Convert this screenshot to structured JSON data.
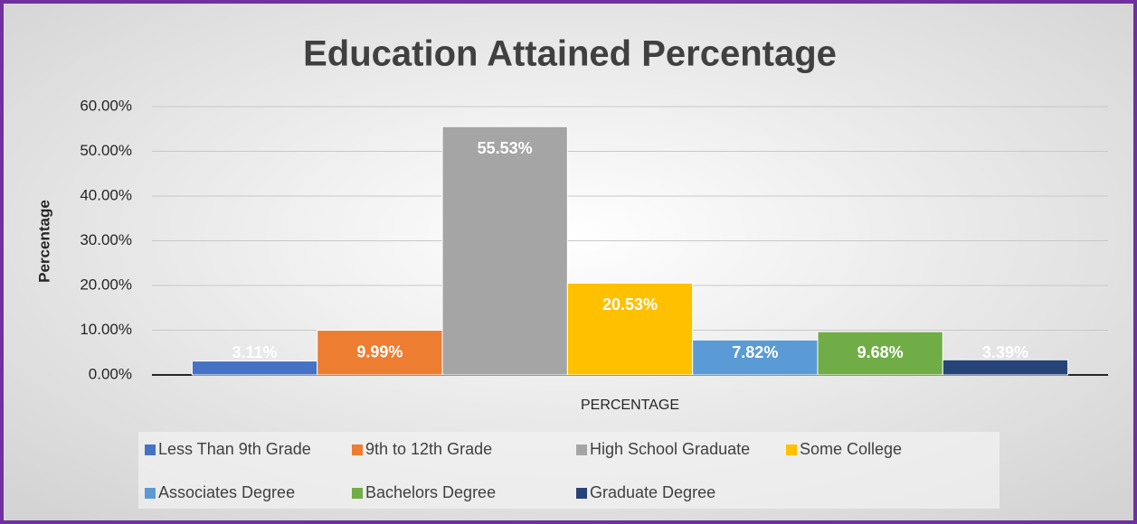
{
  "chart_data": {
    "type": "bar",
    "title": "Education Attained Percentage",
    "y_axis_label": "Percentage",
    "categories": [
      "PERCENTAGE"
    ],
    "series": [
      {
        "name": "Less Than 9th Grade",
        "color": "#4472c4",
        "values": [
          3.11
        ],
        "value_labels": [
          "3.11%"
        ]
      },
      {
        "name": "9th to 12th Grade",
        "color": "#ed7d31",
        "values": [
          9.99
        ],
        "value_labels": [
          "9.99%"
        ]
      },
      {
        "name": "High School Graduate",
        "color": "#a5a5a5",
        "values": [
          55.53
        ],
        "value_labels": [
          "55.53%"
        ]
      },
      {
        "name": "Some College",
        "color": "#ffc000",
        "values": [
          20.53
        ],
        "value_labels": [
          "20.53%"
        ]
      },
      {
        "name": "Associates Degree",
        "color": "#5b9bd5",
        "values": [
          7.82
        ],
        "value_labels": [
          "7.82%"
        ]
      },
      {
        "name": "Bachelors Degree",
        "color": "#70ad47",
        "values": [
          9.68
        ],
        "value_labels": [
          "9.68%"
        ]
      },
      {
        "name": "Graduate Degree",
        "color": "#264478",
        "values": [
          3.39
        ],
        "value_labels": [
          "3.39%"
        ]
      }
    ],
    "ylim": [
      0,
      60
    ],
    "yticks": [
      {
        "value": 0,
        "label": "0.00%"
      },
      {
        "value": 10,
        "label": "10.00%"
      },
      {
        "value": 20,
        "label": "20.00%"
      },
      {
        "value": 30,
        "label": "30.00%"
      },
      {
        "value": 40,
        "label": "40.00%"
      },
      {
        "value": 50,
        "label": "50.00%"
      },
      {
        "value": 60,
        "label": "60.00%"
      }
    ],
    "grid": true,
    "legend": "bottom"
  }
}
